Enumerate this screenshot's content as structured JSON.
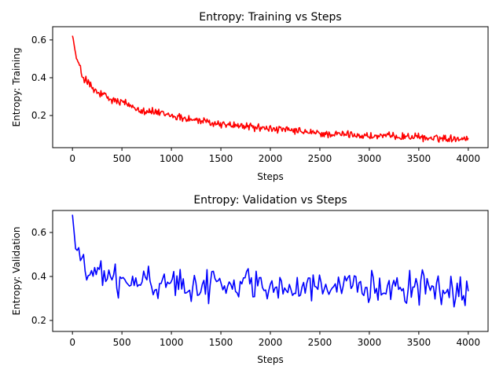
{
  "chart_data": [
    {
      "type": "line",
      "title": "Entropy: Training vs Steps",
      "xlabel": "Steps",
      "ylabel": "Entropy: Training",
      "xlim": [
        -200,
        4200
      ],
      "ylim": [
        0.03,
        0.67
      ],
      "xticks": [
        0,
        500,
        1000,
        1500,
        2000,
        2500,
        3000,
        3500,
        4000
      ],
      "yticks": [
        0.2,
        0.4,
        0.6
      ],
      "grid": false,
      "series": [
        {
          "color": "#ff0000",
          "noise_amplitude": 0.04,
          "x": [
            0,
            30,
            60,
            100,
            150,
            200,
            250,
            300,
            400,
            500,
            600,
            700,
            800,
            900,
            1000,
            1200,
            1400,
            1600,
            1800,
            2000,
            2200,
            2400,
            2600,
            2800,
            3000,
            3200,
            3400,
            3600,
            3800,
            4000
          ],
          "y": [
            0.63,
            0.53,
            0.47,
            0.41,
            0.38,
            0.34,
            0.32,
            0.31,
            0.28,
            0.27,
            0.25,
            0.23,
            0.22,
            0.21,
            0.2,
            0.18,
            0.16,
            0.15,
            0.14,
            0.13,
            0.12,
            0.11,
            0.1,
            0.1,
            0.09,
            0.09,
            0.09,
            0.08,
            0.08,
            0.08
          ]
        }
      ]
    },
    {
      "type": "line",
      "title": "Entropy: Validation vs Steps",
      "xlabel": "Steps",
      "ylabel": "Entropy: Validation",
      "xlim": [
        -200,
        4200
      ],
      "ylim": [
        0.15,
        0.7
      ],
      "xticks": [
        0,
        500,
        1000,
        1500,
        2000,
        2500,
        3000,
        3500,
        4000
      ],
      "yticks": [
        0.2,
        0.4,
        0.6
      ],
      "grid": false,
      "series": [
        {
          "color": "#0000ff",
          "noise_amplitude": 0.09,
          "x": [
            0,
            20,
            40,
            60,
            80,
            100,
            150,
            200,
            300,
            500,
            1000,
            1500,
            1800,
            2000,
            2500,
            2600,
            2800,
            3000,
            3300,
            3500,
            4000
          ],
          "y": [
            0.68,
            0.58,
            0.5,
            0.49,
            0.46,
            0.45,
            0.43,
            0.42,
            0.4,
            0.37,
            0.37,
            0.36,
            0.37,
            0.36,
            0.35,
            0.32,
            0.34,
            0.35,
            0.37,
            0.35,
            0.33
          ]
        }
      ]
    }
  ]
}
